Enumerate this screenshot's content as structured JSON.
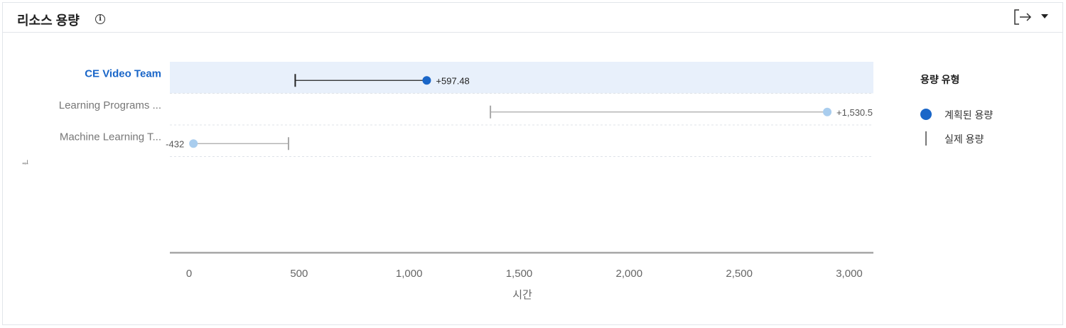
{
  "header": {
    "title": "리소스 용량",
    "info_glyph": "i",
    "icons": [
      "info-icon",
      "export-icon",
      "caret-down-icon"
    ]
  },
  "legend": {
    "title": "용량 유형",
    "items": [
      {
        "label": "계획된 용량",
        "icon": "dot",
        "color": "#1a66c8"
      },
      {
        "label": "실제 용량",
        "icon": "bar",
        "color": "#777777"
      }
    ]
  },
  "side_icon": "ᆗ",
  "colors": {
    "planned_active": "#1a66c8",
    "planned_inactive": "#a9cdee",
    "line_active": "#222222",
    "line_inactive": "#a8a8a8",
    "highlight_band": "#e8f0fb",
    "axis": "#a6a6a6"
  },
  "chart_data": {
    "type": "dumbbell",
    "xlabel": "시간",
    "xlim": [
      -50,
      3200
    ],
    "x_ticks": [
      0,
      500,
      1000,
      1500,
      2000,
      2500,
      3000
    ],
    "x_tick_labels": [
      "0",
      "500",
      "1,000",
      "1,500",
      "2,000",
      "2,500",
      "3,000"
    ],
    "categories": [
      "CE Video Team",
      "Learning Programs ...",
      "Machine Learning T..."
    ],
    "selected_index": 0,
    "series": [
      {
        "name": "계획된 용량",
        "values": [
          1080,
          2900,
          20
        ]
      },
      {
        "name": "실제 용량",
        "values": [
          482.5,
          1369.5,
          452
        ]
      }
    ],
    "difference_labels": [
      "+597.48",
      "+1,530.5",
      "-432"
    ]
  }
}
